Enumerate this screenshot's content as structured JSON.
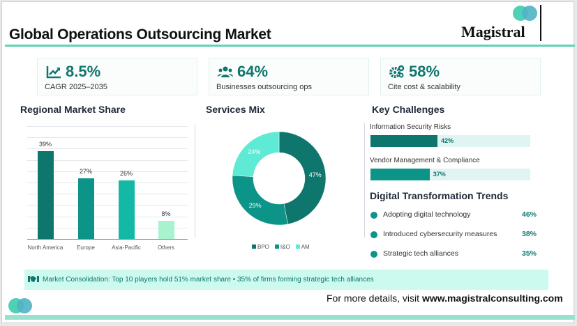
{
  "header": {
    "title": "Global Operations Outsourcing Market",
    "logo_text": "Magistral"
  },
  "kpis": [
    {
      "icon": "trend-chart-icon",
      "value": "8.5%",
      "label": "CAGR 2025–2035"
    },
    {
      "icon": "users-icon",
      "value": "64%",
      "label": "Businesses outsourcing ops"
    },
    {
      "icon": "gears-icon",
      "value": "58%",
      "label": "Cite cost & scalability"
    }
  ],
  "regional": {
    "title": "Regional Market Share"
  },
  "services": {
    "title": "Services Mix"
  },
  "chart_data": [
    {
      "type": "bar",
      "title": "Regional Market Share",
      "categories": [
        "North America",
        "Europe",
        "Asia-Pacific",
        "Others"
      ],
      "values": [
        39,
        27,
        26,
        8
      ],
      "data_labels": [
        "39%",
        "27%",
        "26%",
        "8%"
      ],
      "ylim": [
        0,
        50
      ],
      "grid": true,
      "colors": [
        "#0f766e",
        "#0d9488",
        "#14b8a6",
        "#a7f3d0"
      ]
    },
    {
      "type": "pie",
      "donut": true,
      "title": "Services Mix",
      "categories": [
        "BPO",
        "I&O",
        "AM"
      ],
      "values": [
        47,
        29,
        24
      ],
      "data_labels": [
        "47%",
        "29%",
        "24%"
      ],
      "legend": "bottom",
      "colors": [
        "#0f766e",
        "#0d9488",
        "#5eead4"
      ]
    }
  ],
  "challenges": {
    "title": "Key Challenges",
    "items": [
      {
        "label": "Information Security Risks",
        "value": 42,
        "pct": "42%",
        "color": "#0f766e"
      },
      {
        "label": "Vendor Management & Compliance",
        "value": 37,
        "pct": "37%",
        "color": "#0d9488"
      }
    ]
  },
  "trends": {
    "title": "Digital Transformation Trends",
    "items": [
      {
        "label": "Adopting digital technology",
        "pct": "46%"
      },
      {
        "label": "Introduced cybersecurity measures",
        "pct": "38%"
      },
      {
        "label": "Strategic tech alliances",
        "pct": "35%"
      }
    ]
  },
  "banner": {
    "icon": "handshake-icon",
    "text": "Market Consolidation:  Top 10 players hold 51% market share  •  35% of firms forming strategic tech alliances"
  },
  "footer": {
    "prefix": "For more details, visit ",
    "url": "www.magistralconsulting.com"
  }
}
